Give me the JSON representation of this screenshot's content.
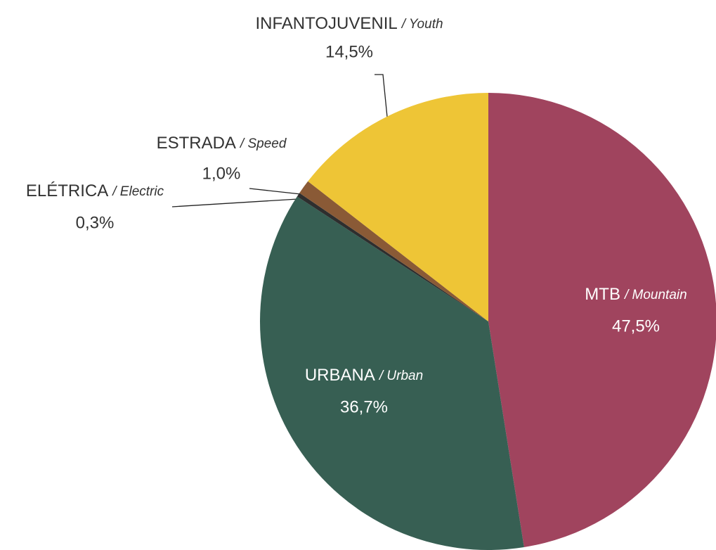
{
  "chart_data": {
    "type": "pie",
    "categories": [
      "MTB",
      "URBANA",
      "ELÉTRICA",
      "ESTRADA",
      "INFANTOJUVENIL"
    ],
    "subcategories": [
      "/ Mountain",
      "/ Urban",
      "/ Electric",
      "/ Speed",
      "/ Youth"
    ],
    "values": [
      47.5,
      36.7,
      0.3,
      1.0,
      14.5
    ],
    "value_labels": [
      "47,5%",
      "36,7%",
      "0,3%",
      "1,0%",
      "14,5%"
    ],
    "colors": [
      "#a0445e",
      "#375f53",
      "#2e2e2e",
      "#8a5a36",
      "#eec536"
    ]
  }
}
